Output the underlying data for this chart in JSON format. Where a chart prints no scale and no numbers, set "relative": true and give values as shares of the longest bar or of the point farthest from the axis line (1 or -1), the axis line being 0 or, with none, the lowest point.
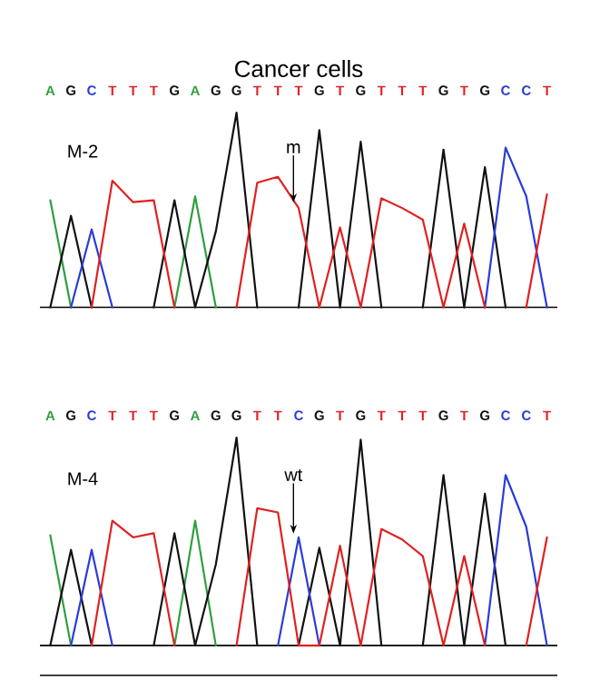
{
  "chart_data": [
    {
      "type": "line",
      "title": "Cancer cells",
      "relative": true,
      "categories": [
        "A",
        "G",
        "C",
        "T",
        "T",
        "T",
        "G",
        "A",
        "G",
        "G",
        "T",
        "T",
        "T",
        "G",
        "T",
        "G",
        "T",
        "T",
        "T",
        "G",
        "T",
        "G",
        "C",
        "C",
        "T"
      ],
      "series": [
        {
          "color": "#2e9e3e",
          "values": [
            0.55,
            0,
            null,
            null,
            null,
            null,
            0,
            0.57,
            0,
            null,
            null,
            null,
            null,
            null,
            null,
            null,
            null,
            null,
            null,
            null,
            null,
            null,
            null,
            null,
            null
          ]
        },
        {
          "color": "#111111",
          "values": [
            0,
            0.47,
            0,
            null,
            null,
            0,
            0.55,
            0,
            0.39,
            1.0,
            0,
            null,
            0,
            0.91,
            0,
            0.85,
            0,
            null,
            0,
            0.81,
            0,
            0.72,
            0,
            null,
            null
          ]
        },
        {
          "color": "#2a3cd8",
          "values": [
            null,
            0,
            0.4,
            0,
            null,
            null,
            null,
            null,
            null,
            null,
            null,
            null,
            null,
            null,
            null,
            null,
            null,
            null,
            null,
            null,
            null,
            0,
            0.82,
            0.57,
            0
          ]
        },
        {
          "color": "#e02020",
          "values": [
            null,
            null,
            0,
            0.65,
            0.54,
            0.55,
            0,
            null,
            null,
            0,
            0.64,
            0.67,
            0.51,
            0,
            0.41,
            0,
            0.56,
            0.51,
            0.45,
            0,
            0.43,
            0,
            null,
            0,
            0.58
          ]
        }
      ],
      "annotations": [
        "M-2",
        "m"
      ]
    },
    {
      "type": "line",
      "relative": true,
      "categories": [
        "A",
        "G",
        "C",
        "T",
        "T",
        "T",
        "G",
        "A",
        "G",
        "G",
        "T",
        "T",
        "C",
        "G",
        "T",
        "G",
        "T",
        "T",
        "T",
        "G",
        "T",
        "G",
        "C",
        "C",
        "T"
      ],
      "series": [
        {
          "color": "#2e9e3e",
          "values": [
            0.53,
            0,
            null,
            null,
            null,
            null,
            0,
            0.6,
            0,
            null,
            null,
            null,
            null,
            null,
            null,
            null,
            null,
            null,
            null,
            null,
            null,
            null,
            null,
            null,
            null
          ]
        },
        {
          "color": "#111111",
          "values": [
            0,
            0.46,
            0,
            null,
            null,
            0,
            0.54,
            0,
            0.39,
            1.0,
            0,
            null,
            0,
            0.47,
            0,
            0.99,
            0,
            null,
            0,
            0.82,
            0,
            0.73,
            0,
            null,
            null
          ]
        },
        {
          "color": "#2a3cd8",
          "values": [
            null,
            0,
            0.46,
            0,
            null,
            null,
            null,
            null,
            null,
            null,
            null,
            0,
            0.52,
            0,
            null,
            null,
            null,
            null,
            null,
            null,
            null,
            0,
            0.82,
            0.57,
            0
          ]
        },
        {
          "color": "#e02020",
          "values": [
            null,
            null,
            0,
            0.6,
            0.52,
            0.54,
            0,
            null,
            null,
            0,
            0.66,
            0.64,
            0,
            0,
            0.48,
            0,
            0.56,
            0.51,
            0.43,
            0,
            0.43,
            0,
            null,
            0,
            0.52
          ]
        }
      ],
      "annotations": [
        "M-4",
        "wt"
      ]
    }
  ]
}
